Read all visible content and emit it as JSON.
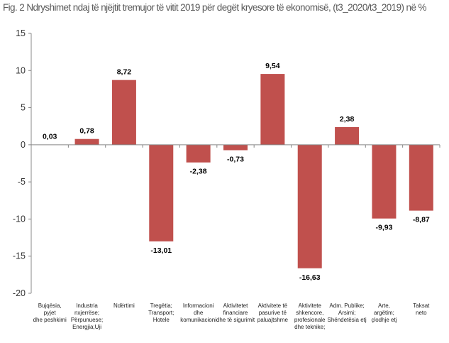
{
  "chart_data": {
    "type": "bar",
    "title": "Fig. 2 Ndryshimet ndaj të njëjtit tremujor të vitit 2019 për degët kryesore të ekonomisë, (t3_2020/t3_2019) në %",
    "categories": [
      [
        "Bujqësia,",
        "pyjet",
        "dhe peshkimi"
      ],
      [
        "Industria",
        "nxjerrëse;",
        "Përpunuese;",
        "Energjia;Uji"
      ],
      [
        "Ndërtimi"
      ],
      [
        "Tregëtia;",
        "Transport;",
        "Hotele"
      ],
      [
        "Informacioni",
        "dhe",
        "komunikacioni"
      ],
      [
        "Aktivitetet",
        "financiare",
        "dhe të sigurimit"
      ],
      [
        "Aktivitete të",
        "pasurive të",
        "paluajtshme"
      ],
      [
        "Aktivitete",
        "shkencore,",
        "profesionale",
        "dhe teknike;"
      ],
      [
        "Adm. Publike;",
        "Arsimi;",
        "Shëndetësia etj"
      ],
      [
        "Arte,",
        "argëtim;",
        "çlodhje etj"
      ],
      [
        "Taksat",
        "neto"
      ]
    ],
    "values": [
      0.03,
      0.78,
      8.72,
      -13.01,
      -2.38,
      -0.73,
      9.54,
      -16.63,
      2.38,
      -9.93,
      -8.87
    ],
    "labels": [
      "0,03",
      "0,78",
      "8,72",
      "-13,01",
      "-2,38",
      "-0,73",
      "9,54",
      "-16,63",
      "2,38",
      "-9,93",
      "-8,87"
    ],
    "ylim": [
      -20,
      15
    ],
    "yticks": [
      15,
      10,
      5,
      0,
      -5,
      -10,
      -15,
      -20
    ],
    "xlabel": "",
    "ylabel": "",
    "grid": false,
    "bar_color": "#c0504d"
  }
}
